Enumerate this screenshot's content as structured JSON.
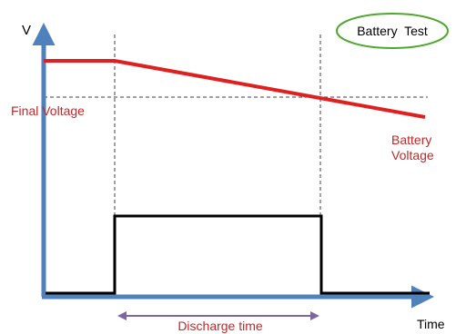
{
  "labels": {
    "y_axis": "V",
    "x_axis": "Time",
    "final_voltage": "Final Voltage",
    "battery_voltage_line1": "Battery",
    "battery_voltage_line2": "Voltage",
    "badge": "Battery  Test",
    "discharge_time": "Discharge time"
  },
  "colors": {
    "axis": "#4f81bd",
    "voltage_line": "#e02020",
    "voltage_text": "#c0282a",
    "pulse": "#000000",
    "guide": "#404040",
    "arrow": "#8064a2",
    "badge_border": "#4ea72e"
  }
}
